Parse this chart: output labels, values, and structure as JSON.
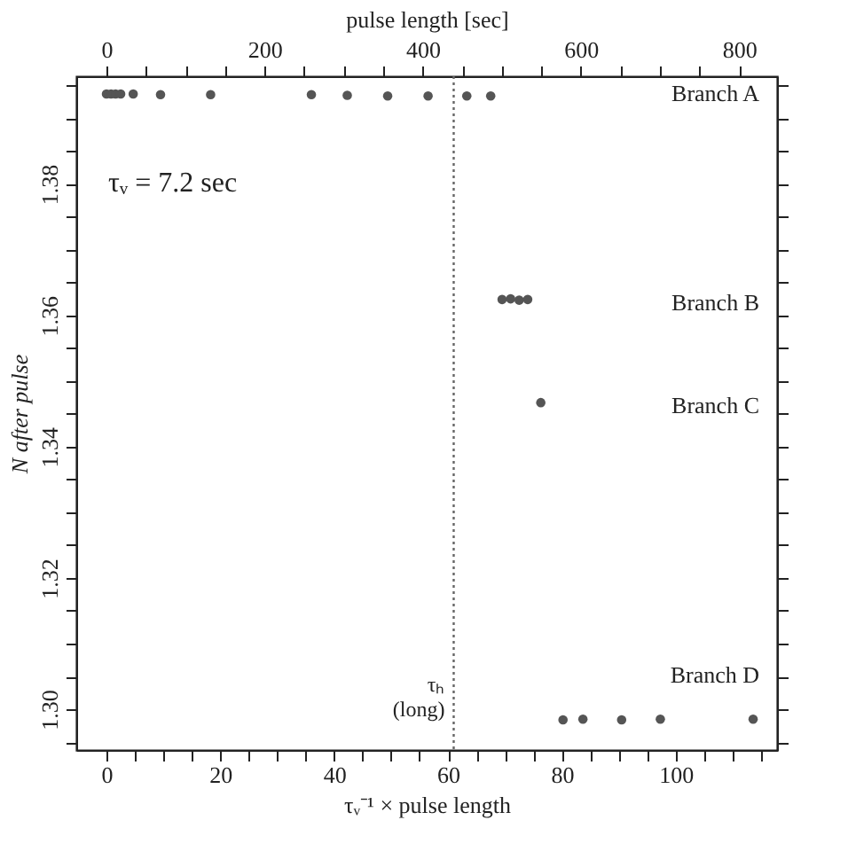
{
  "chart_data": {
    "type": "scatter",
    "xlabel": "τᵥ⁻¹ × pulse length",
    "ylabel": "N after pulse",
    "x2label": "pulse length  [sec]",
    "x": [
      0,
      0.8,
      1.6,
      2.5,
      4.7,
      9.5,
      18.3,
      36,
      42.3,
      49.4,
      56.5,
      63.3,
      67.5,
      69.5,
      71,
      72.5,
      74,
      76.3,
      80.2,
      83.7,
      90.5,
      97.3,
      113.6
    ],
    "values": [
      1.3937,
      1.3937,
      1.3937,
      1.3937,
      1.3937,
      1.3936,
      1.3936,
      1.3936,
      1.3935,
      1.3934,
      1.3934,
      1.3934,
      1.3934,
      1.3624,
      1.3625,
      1.3623,
      1.3624,
      1.3467,
      1.2984,
      1.2985,
      1.2984,
      1.2985,
      1.2985
    ],
    "color": "#555555",
    "marker": "circle",
    "grid": false,
    "xlim": [
      -5.3,
      117.8
    ],
    "xticks": [
      0,
      {
        "value": 5,
        "label": null
      },
      {
        "value": 10,
        "label": null
      },
      {
        "value": 15,
        "label": null
      },
      20,
      {
        "value": 25,
        "label": null
      },
      {
        "value": 30,
        "label": null
      },
      {
        "value": 35,
        "label": null
      },
      40,
      {
        "value": 45,
        "label": null
      },
      {
        "value": 50,
        "label": null
      },
      {
        "value": 55,
        "label": null
      },
      60,
      {
        "value": 65,
        "label": null
      },
      {
        "value": 70,
        "label": null
      },
      {
        "value": 75,
        "label": null
      },
      80,
      {
        "value": 85,
        "label": null
      },
      {
        "value": 90,
        "label": null
      },
      {
        "value": 95,
        "label": null
      },
      100,
      {
        "value": 105,
        "label": null
      },
      {
        "value": 110,
        "label": null
      },
      {
        "value": 115,
        "label": null
      }
    ],
    "x2lim": [
      -38,
      848
    ],
    "x2ticks": [
      0,
      {
        "value": 50,
        "label": null
      },
      {
        "value": 100,
        "label": null
      },
      {
        "value": 150,
        "label": null
      },
      200,
      {
        "value": 250,
        "label": null
      },
      {
        "value": 300,
        "label": null
      },
      {
        "value": 350,
        "label": null
      },
      400,
      {
        "value": 450,
        "label": null
      },
      {
        "value": 500,
        "label": null
      },
      {
        "value": 550,
        "label": null
      },
      600,
      {
        "value": 650,
        "label": null
      },
      {
        "value": 700,
        "label": null
      },
      {
        "value": 750,
        "label": null
      },
      800
    ],
    "ylim": [
      1.2938,
      1.3964
    ],
    "yticks": [
      {
        "value": 1.295,
        "label": null
      },
      {
        "value": 1.3,
        "label": "1.30"
      },
      {
        "value": 1.305,
        "label": null
      },
      {
        "value": 1.31,
        "label": null
      },
      {
        "value": 1.315,
        "label": null
      },
      1.32,
      {
        "value": 1.325,
        "label": null
      },
      {
        "value": 1.33,
        "label": null
      },
      {
        "value": 1.335,
        "label": null
      },
      1.34,
      {
        "value": 1.345,
        "label": null
      },
      {
        "value": 1.35,
        "label": null
      },
      {
        "value": 1.355,
        "label": null
      },
      1.36,
      {
        "value": 1.365,
        "label": null
      },
      {
        "value": 1.37,
        "label": null
      },
      {
        "value": 1.375,
        "label": null
      },
      1.38,
      {
        "value": 1.385,
        "label": null
      },
      {
        "value": 1.39,
        "label": null
      },
      {
        "value": 1.395,
        "label": null
      }
    ],
    "ref_lines": [
      {
        "axis": "x",
        "value": 61,
        "label": "τₕ (long)",
        "line_style": "dotted",
        "color": "#666666"
      }
    ],
    "annotations": [
      "τᵥ = 7.2 sec",
      "Branch A",
      "Branch B",
      "Branch C",
      "Branch D"
    ]
  }
}
